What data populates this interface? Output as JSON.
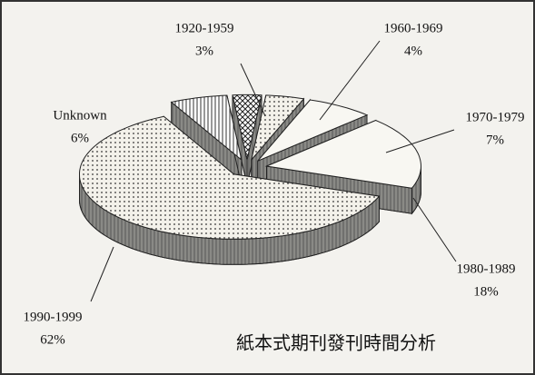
{
  "chart_data": {
    "type": "pie",
    "title": "紙本式期刊發刊時間分析",
    "categories": [
      "Unknown",
      "1920-1959",
      "1960-1969",
      "1970-1979",
      "1980-1989",
      "1990-1999"
    ],
    "values": [
      6,
      3,
      4,
      7,
      18,
      62
    ],
    "value_labels": [
      "6%",
      "3%",
      "4%",
      "7%",
      "18%",
      "62%"
    ]
  }
}
